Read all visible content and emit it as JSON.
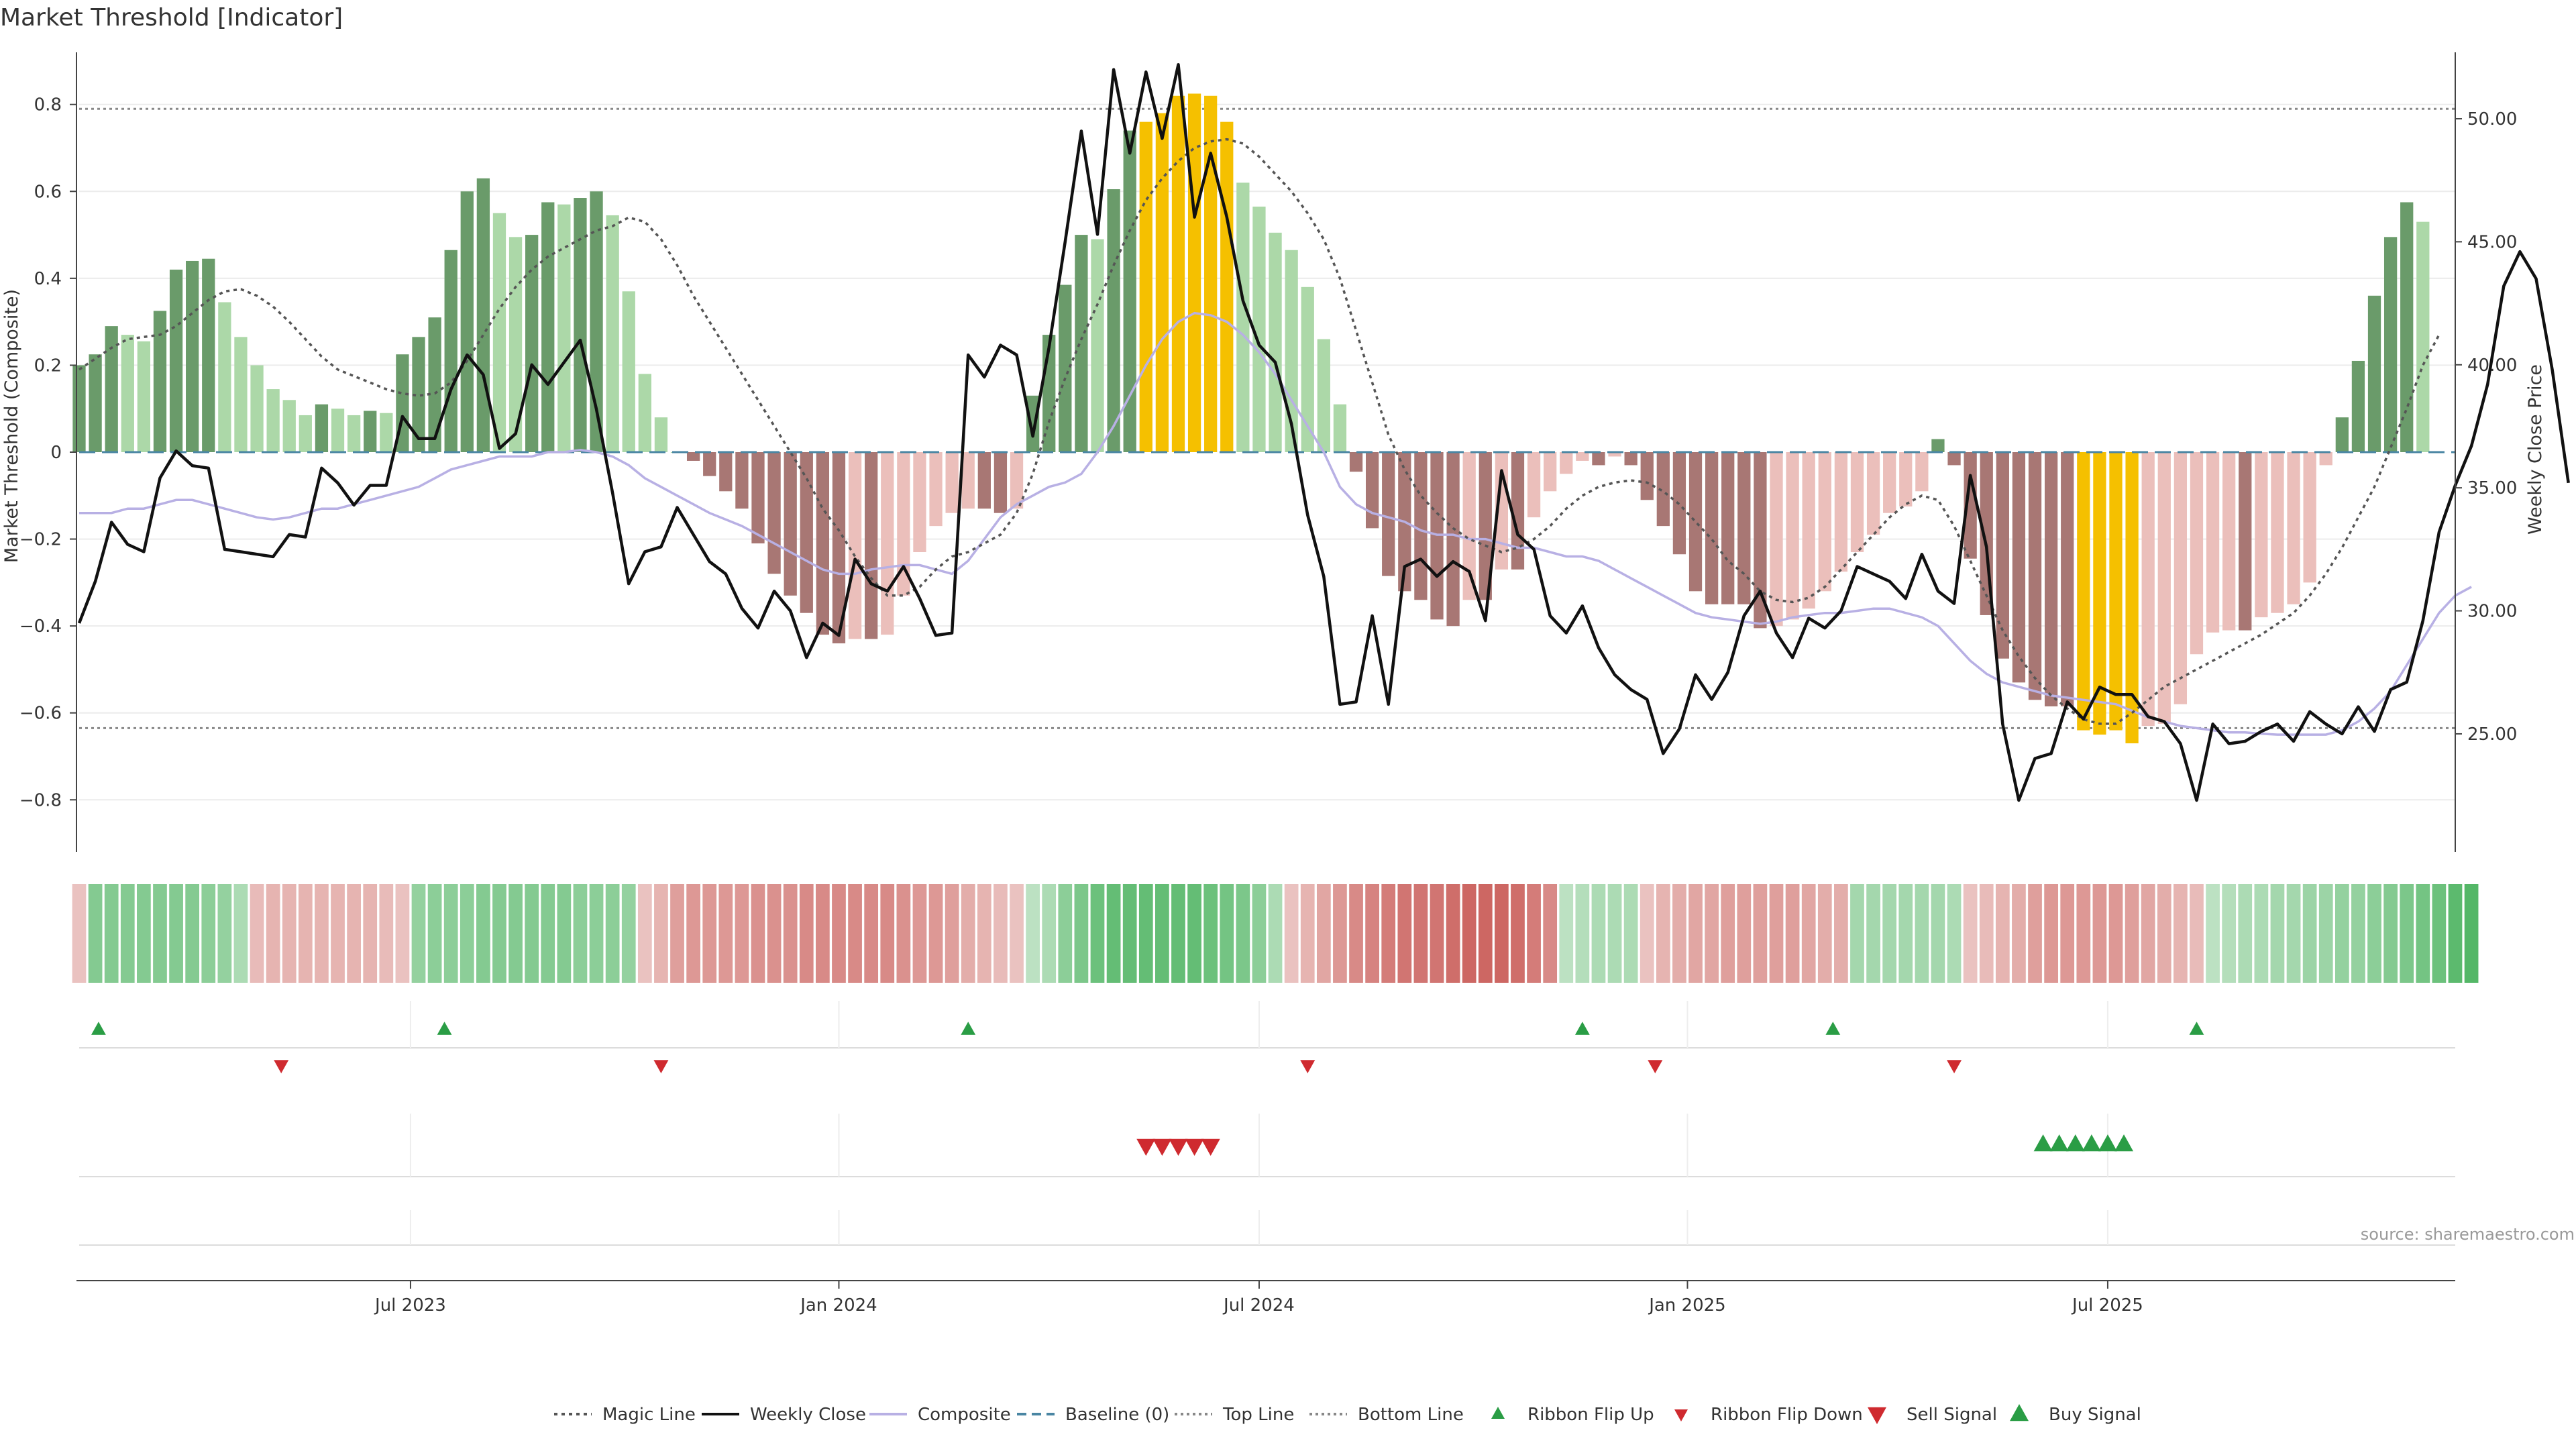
{
  "chart_data": {
    "type": "bar",
    "title": "Market Threshold [Indicator]",
    "ylabel": "Market Threshold (Composite)",
    "y2label": "Weekly Close Price",
    "source": "source: sharemaestro.com",
    "ylim": [
      -0.92,
      0.92
    ],
    "y2lim": [
      20.2,
      52.7
    ],
    "yticks": [
      "0.8",
      "0.6",
      "0.4",
      "0.2",
      "0",
      "−0.2",
      "−0.4",
      "−0.6",
      "−0.8"
    ],
    "ytick_values": [
      0.8,
      0.6,
      0.4,
      0.2,
      0,
      -0.2,
      -0.4,
      -0.6,
      -0.8
    ],
    "y2ticks": [
      "50.00",
      "45.00",
      "40.00",
      "35.00",
      "30.00",
      "25.00"
    ],
    "y2tick_values": [
      50,
      45,
      40,
      35,
      30,
      25
    ],
    "x_range_weeks": [
      0,
      147
    ],
    "xticks": [
      {
        "label": "Jul 2023",
        "week": 20.5
      },
      {
        "label": "Jan 2024",
        "week": 47.0
      },
      {
        "label": "Jul 2024",
        "week": 73.0
      },
      {
        "label": "Jan 2025",
        "week": 99.5
      },
      {
        "label": "Jul 2025",
        "week": 125.5
      }
    ],
    "top_line": 0.79,
    "bottom_line": -0.635,
    "composite_bars": [
      0.2,
      0.225,
      0.29,
      0.27,
      0.255,
      0.325,
      0.42,
      0.44,
      0.445,
      0.345,
      0.265,
      0.2,
      0.145,
      0.12,
      0.085,
      0.11,
      0.1,
      0.085,
      0.095,
      0.09,
      0.225,
      0.265,
      0.31,
      0.465,
      0.6,
      0.63,
      0.55,
      0.495,
      0.5,
      0.575,
      0.57,
      0.585,
      0.6,
      0.545,
      0.37,
      0.18,
      0.08,
      0,
      -0.02,
      -0.055,
      -0.09,
      -0.13,
      -0.21,
      -0.28,
      -0.33,
      -0.37,
      -0.42,
      -0.44,
      -0.43,
      -0.43,
      -0.42,
      -0.33,
      -0.23,
      -0.17,
      -0.14,
      -0.13,
      -0.13,
      -0.14,
      -0.13,
      0.13,
      0.27,
      0.385,
      0.5,
      0.49,
      0.605,
      0.74,
      0.76,
      0.78,
      0.82,
      0.825,
      0.82,
      0.76,
      0.62,
      0.565,
      0.505,
      0.465,
      0.38,
      0.26,
      0.11,
      -0.045,
      -0.175,
      -0.285,
      -0.32,
      -0.34,
      -0.385,
      -0.4,
      -0.34,
      -0.34,
      -0.27,
      -0.27,
      -0.15,
      -0.09,
      -0.05,
      -0.02,
      -0.03,
      -0.01,
      -0.03,
      -0.11,
      -0.17,
      -0.235,
      -0.32,
      -0.35,
      -0.35,
      -0.35,
      -0.405,
      -0.4,
      -0.385,
      -0.36,
      -0.32,
      -0.275,
      -0.23,
      -0.19,
      -0.14,
      -0.125,
      -0.09,
      0.03,
      -0.03,
      -0.245,
      -0.375,
      -0.475,
      -0.53,
      -0.57,
      -0.585,
      -0.585,
      -0.64,
      -0.65,
      -0.64,
      -0.67,
      -0.63,
      -0.625,
      -0.58,
      -0.465,
      -0.415,
      -0.41,
      -0.41,
      -0.38,
      -0.37,
      -0.35,
      -0.3,
      -0.03,
      0.08,
      0.21,
      0.36,
      0.495,
      0.575,
      0.53
    ],
    "weekly_close": [
      29.5,
      31.2,
      33.6,
      32.7,
      32.4,
      35.4,
      36.5,
      35.9,
      35.8,
      32.5,
      32.4,
      32.3,
      32.2,
      33.1,
      33,
      35.8,
      35.2,
      34.3,
      35.1,
      35.1,
      37.9,
      37,
      37,
      39,
      40.4,
      39.6,
      36.6,
      37.2,
      40,
      39.2,
      40.1,
      41,
      38.2,
      34.8,
      31.1,
      32.4,
      32.6,
      34.2,
      33.1,
      32,
      31.5,
      30.1,
      29.3,
      30.8,
      30,
      28.1,
      29.5,
      29,
      32.1,
      31.1,
      30.8,
      31.8,
      30.5,
      29,
      29.1,
      40.4,
      39.5,
      40.8,
      40.4,
      37.1,
      40.7,
      45,
      49.5,
      45.3,
      52,
      48.6,
      51.9,
      49.2,
      52.2,
      46,
      48.6,
      46,
      42.6,
      40.8,
      40.1,
      37.6,
      33.9,
      31.4,
      26.2,
      26.3,
      29.8,
      26.2,
      31.8,
      32.1,
      31.4,
      32,
      31.6,
      29.6,
      35.7,
      33.1,
      32.5,
      29.8,
      29.1,
      30.2,
      28.5,
      27.4,
      26.8,
      26.4,
      24.2,
      25.2,
      27.4,
      26.4,
      27.5,
      29.8,
      30.8,
      29.1,
      28.1,
      29.7,
      29.3,
      30,
      31.8,
      31.5,
      31.2,
      30.5,
      32.3,
      30.8,
      30.3,
      35.5,
      32.6,
      25.4,
      22.3,
      24,
      24.2,
      26.3,
      25.6,
      26.9,
      26.6,
      26.6,
      25.7,
      25.5,
      24.6,
      22.3,
      25.4,
      24.6,
      24.7,
      25.1,
      25.4,
      24.7,
      25.9,
      25.4,
      25,
      26.1,
      25.1,
      26.8,
      27.1,
      29.6,
      33.2,
      35.1,
      36.7,
      39.2,
      43.2,
      44.6,
      43.5,
      39.8,
      35.2
    ],
    "composite_line": [
      -0.14,
      -0.14,
      -0.14,
      -0.13,
      -0.13,
      -0.12,
      -0.11,
      -0.11,
      -0.12,
      -0.13,
      -0.14,
      -0.15,
      -0.155,
      -0.15,
      -0.14,
      -0.13,
      -0.13,
      -0.12,
      -0.11,
      -0.1,
      -0.09,
      -0.08,
      -0.06,
      -0.04,
      -0.03,
      -0.02,
      -0.01,
      -0.01,
      -0.01,
      0,
      0,
      0.005,
      0,
      -0.01,
      -0.03,
      -0.06,
      -0.08,
      -0.1,
      -0.12,
      -0.14,
      -0.155,
      -0.17,
      -0.19,
      -0.21,
      -0.23,
      -0.25,
      -0.27,
      -0.28,
      -0.28,
      -0.27,
      -0.265,
      -0.26,
      -0.26,
      -0.27,
      -0.28,
      -0.25,
      -0.2,
      -0.15,
      -0.12,
      -0.1,
      -0.08,
      -0.07,
      -0.05,
      0,
      0.06,
      0.13,
      0.2,
      0.26,
      0.3,
      0.32,
      0.315,
      0.3,
      0.27,
      0.23,
      0.18,
      0.12,
      0.06,
      0,
      -0.08,
      -0.12,
      -0.14,
      -0.15,
      -0.16,
      -0.18,
      -0.19,
      -0.19,
      -0.2,
      -0.2,
      -0.21,
      -0.22,
      -0.22,
      -0.23,
      -0.24,
      -0.24,
      -0.25,
      -0.27,
      -0.29,
      -0.31,
      -0.33,
      -0.35,
      -0.37,
      -0.38,
      -0.385,
      -0.39,
      -0.395,
      -0.39,
      -0.38,
      -0.375,
      -0.37,
      -0.37,
      -0.365,
      -0.36,
      -0.36,
      -0.37,
      -0.38,
      -0.4,
      -0.44,
      -0.48,
      -0.51,
      -0.53,
      -0.54,
      -0.55,
      -0.56,
      -0.565,
      -0.57,
      -0.575,
      -0.58,
      -0.595,
      -0.61,
      -0.62,
      -0.63,
      -0.635,
      -0.64,
      -0.645,
      -0.645,
      -0.648,
      -0.65,
      -0.65,
      -0.65,
      -0.65,
      -0.64,
      -0.62,
      -0.59,
      -0.55,
      -0.49,
      -0.43,
      -0.37,
      -0.33,
      -0.31
    ],
    "magic_line": [
      0.19,
      0.215,
      0.24,
      0.26,
      0.265,
      0.27,
      0.29,
      0.32,
      0.35,
      0.37,
      0.375,
      0.36,
      0.335,
      0.3,
      0.26,
      0.22,
      0.19,
      0.175,
      0.16,
      0.145,
      0.135,
      0.13,
      0.135,
      0.16,
      0.21,
      0.27,
      0.33,
      0.38,
      0.42,
      0.45,
      0.47,
      0.49,
      0.51,
      0.52,
      0.54,
      0.53,
      0.49,
      0.43,
      0.36,
      0.3,
      0.24,
      0.18,
      0.12,
      0.06,
      0,
      -0.06,
      -0.13,
      -0.18,
      -0.24,
      -0.29,
      -0.33,
      -0.33,
      -0.31,
      -0.27,
      -0.24,
      -0.23,
      -0.21,
      -0.19,
      -0.14,
      -0.05,
      0.07,
      0.17,
      0.26,
      0.34,
      0.43,
      0.51,
      0.58,
      0.63,
      0.67,
      0.7,
      0.715,
      0.72,
      0.71,
      0.68,
      0.64,
      0.6,
      0.55,
      0.49,
      0.4,
      0.28,
      0.16,
      0.04,
      -0.04,
      -0.1,
      -0.14,
      -0.175,
      -0.2,
      -0.215,
      -0.23,
      -0.22,
      -0.2,
      -0.17,
      -0.13,
      -0.1,
      -0.08,
      -0.07,
      -0.065,
      -0.07,
      -0.09,
      -0.12,
      -0.16,
      -0.2,
      -0.25,
      -0.28,
      -0.32,
      -0.34,
      -0.345,
      -0.335,
      -0.31,
      -0.27,
      -0.23,
      -0.19,
      -0.15,
      -0.12,
      -0.1,
      -0.11,
      -0.17,
      -0.25,
      -0.33,
      -0.41,
      -0.47,
      -0.52,
      -0.56,
      -0.59,
      -0.615,
      -0.625,
      -0.625,
      -0.6,
      -0.57,
      -0.54,
      -0.52,
      -0.5,
      -0.48,
      -0.46,
      -0.44,
      -0.42,
      -0.395,
      -0.37,
      -0.33,
      -0.28,
      -0.22,
      -0.15,
      -0.08,
      0.01,
      0.1,
      0.2,
      0.27
    ],
    "ribbon_strength": [
      -0.2,
      0.55,
      0.55,
      0.55,
      0.55,
      0.55,
      0.55,
      0.55,
      0.5,
      0.45,
      0.3,
      -0.25,
      -0.3,
      -0.3,
      -0.3,
      -0.3,
      -0.3,
      -0.3,
      -0.3,
      -0.25,
      -0.2,
      0.45,
      0.5,
      0.5,
      0.5,
      0.55,
      0.55,
      0.55,
      0.55,
      0.55,
      0.55,
      0.5,
      0.5,
      0.5,
      0.45,
      -0.2,
      -0.3,
      -0.45,
      -0.5,
      -0.5,
      -0.5,
      -0.5,
      -0.55,
      -0.55,
      -0.55,
      -0.6,
      -0.6,
      -0.6,
      -0.6,
      -0.6,
      -0.6,
      -0.55,
      -0.5,
      -0.5,
      -0.45,
      -0.35,
      -0.3,
      -0.25,
      -0.2,
      0.2,
      0.3,
      0.5,
      0.6,
      0.7,
      0.75,
      0.75,
      0.75,
      0.75,
      0.75,
      0.75,
      0.7,
      0.65,
      0.6,
      0.5,
      0.3,
      -0.2,
      -0.3,
      -0.4,
      -0.5,
      -0.6,
      -0.65,
      -0.7,
      -0.75,
      -0.75,
      -0.75,
      -0.8,
      -0.85,
      -0.85,
      -0.85,
      -0.8,
      -0.7,
      -0.6,
      0.2,
      0.25,
      0.3,
      0.3,
      0.3,
      -0.2,
      -0.3,
      -0.35,
      -0.4,
      -0.4,
      -0.45,
      -0.45,
      -0.45,
      -0.45,
      -0.45,
      -0.4,
      -0.35,
      -0.35,
      0.35,
      0.35,
      0.35,
      0.35,
      0.35,
      0.35,
      0.3,
      -0.2,
      -0.25,
      -0.3,
      -0.35,
      -0.45,
      -0.5,
      -0.5,
      -0.5,
      -0.5,
      -0.5,
      -0.45,
      -0.4,
      -0.35,
      -0.3,
      -0.25,
      0.2,
      0.25,
      0.3,
      0.3,
      0.35,
      0.35,
      0.4,
      0.4,
      0.45,
      0.45,
      0.5,
      0.55,
      0.6,
      0.65,
      0.7,
      0.8,
      0.85
    ],
    "ribbon_flip_up": [
      1.2,
      22.6,
      55,
      93,
      108.5,
      131
    ],
    "ribbon_flip_down": [
      12.5,
      36,
      76,
      97.5,
      116
    ],
    "sell_signal": [
      66,
      67,
      68,
      69,
      70
    ],
    "buy_signal": [
      121.5,
      122.5,
      123.5,
      124.5,
      125.5,
      126.5
    ],
    "legend": [
      "Magic Line",
      "Weekly Close",
      "Composite",
      "Baseline (0)",
      "Top Line",
      "Bottom Line",
      "Ribbon Flip Up",
      "Ribbon Flip Down",
      "Sell Signal",
      "Buy Signal"
    ]
  },
  "colors": {
    "bull_strong": "#6a9b6a",
    "bull_weak": "#acd8a8",
    "bear_strong": "#a87774",
    "bear_weak": "#ebbfbb",
    "extreme": "#f5c000",
    "close_line": "#111111",
    "composite_line": "#b8b0e4",
    "magic_line": "#555555",
    "baseline": "#4a86a3",
    "up_marker": "#2a9d45",
    "down_marker": "#cf2a2f"
  }
}
